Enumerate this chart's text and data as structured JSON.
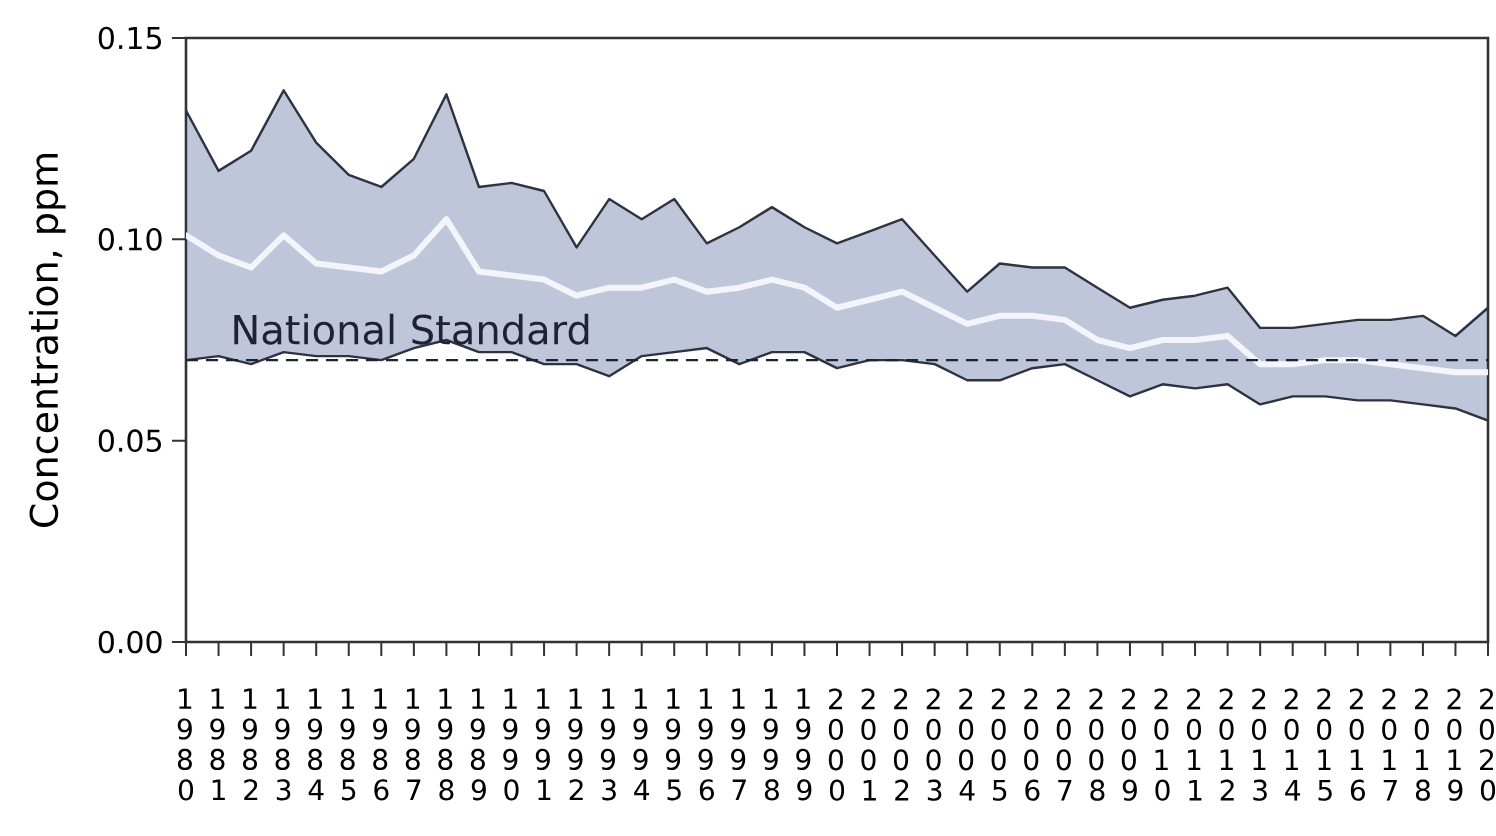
{
  "chart_data": {
    "type": "line",
    "ylabel": "Concentration, ppm",
    "categories": [
      "1980",
      "1981",
      "1982",
      "1983",
      "1984",
      "1985",
      "1986",
      "1987",
      "1988",
      "1989",
      "1990",
      "1991",
      "1992",
      "1993",
      "1994",
      "1995",
      "1996",
      "1997",
      "1998",
      "1999",
      "2000",
      "2001",
      "2002",
      "2003",
      "2004",
      "2005",
      "2006",
      "2007",
      "2008",
      "2009",
      "2010",
      "2011",
      "2012",
      "2013",
      "2014",
      "2015",
      "2016",
      "2017",
      "2018",
      "2019",
      "2020"
    ],
    "series": [
      {
        "color": "#f3f5fb",
        "values": [
          0.101,
          0.096,
          0.093,
          0.101,
          0.094,
          0.093,
          0.092,
          0.096,
          0.105,
          0.092,
          0.091,
          0.09,
          0.086,
          0.088,
          0.088,
          0.09,
          0.087,
          0.088,
          0.09,
          0.088,
          0.083,
          0.085,
          0.087,
          0.083,
          0.079,
          0.081,
          0.081,
          0.08,
          0.075,
          0.073,
          0.075,
          0.075,
          0.076,
          0.069,
          0.069,
          0.07,
          0.07,
          0.069,
          0.068,
          0.067,
          0.067
        ],
        "lower": [
          0.07,
          0.071,
          0.069,
          0.072,
          0.071,
          0.071,
          0.07,
          0.073,
          0.075,
          0.072,
          0.072,
          0.069,
          0.069,
          0.066,
          0.071,
          0.072,
          0.073,
          0.069,
          0.072,
          0.072,
          0.068,
          0.07,
          0.07,
          0.069,
          0.065,
          0.065,
          0.068,
          0.069,
          0.065,
          0.061,
          0.064,
          0.063,
          0.064,
          0.059,
          0.061,
          0.061,
          0.06,
          0.06,
          0.059,
          0.058,
          0.055
        ],
        "upper": [
          0.132,
          0.117,
          0.122,
          0.137,
          0.124,
          0.116,
          0.113,
          0.12,
          0.136,
          0.113,
          0.114,
          0.112,
          0.098,
          0.11,
          0.105,
          0.11,
          0.099,
          0.103,
          0.108,
          0.103,
          0.099,
          0.102,
          0.105,
          0.096,
          0.087,
          0.094,
          0.093,
          0.093,
          0.088,
          0.083,
          0.085,
          0.086,
          0.088,
          0.078,
          0.078,
          0.079,
          0.08,
          0.08,
          0.081,
          0.076,
          0.083
        ]
      }
    ],
    "ylim": [
      0,
      0.15
    ],
    "yticks": [
      {
        "value": 0,
        "label": "0.00"
      },
      {
        "value": 0.05,
        "label": "0.05"
      },
      {
        "value": 0.1,
        "label": "0.10"
      },
      {
        "value": 0.15,
        "label": "0.15"
      }
    ],
    "ref_lines": [
      {
        "axis": "y",
        "value": 0.07,
        "label": "National Standard",
        "color": "#1e2235",
        "line_style": "dashed"
      }
    ]
  }
}
